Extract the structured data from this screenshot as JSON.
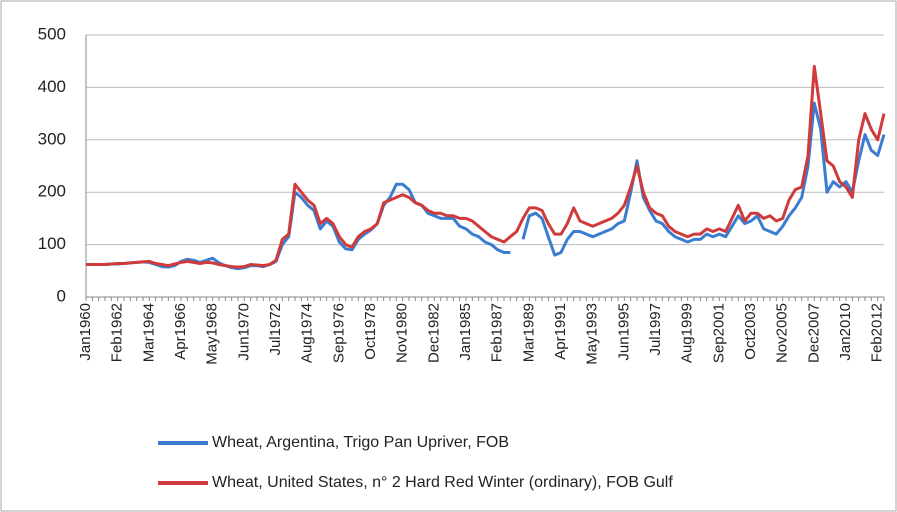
{
  "chart_data": {
    "type": "line",
    "categories": [
      "Jan1960",
      null,
      null,
      null,
      null,
      "Feb1962",
      null,
      null,
      null,
      null,
      "Mar1964",
      null,
      null,
      null,
      null,
      "Apr1966",
      null,
      null,
      null,
      null,
      "May1968",
      null,
      null,
      null,
      null,
      "Jun1970",
      null,
      null,
      null,
      null,
      "Jul1972",
      null,
      null,
      null,
      null,
      "Aug1974",
      null,
      null,
      null,
      null,
      "Sep1976",
      null,
      null,
      null,
      null,
      "Oct1978",
      null,
      null,
      null,
      null,
      "Nov1980",
      null,
      null,
      null,
      null,
      "Dec1982",
      null,
      null,
      null,
      null,
      "Jan1985",
      null,
      null,
      null,
      null,
      "Feb1987",
      null,
      null,
      null,
      null,
      "Mar1989",
      null,
      null,
      null,
      null,
      "Apr1991",
      null,
      null,
      null,
      null,
      "May1993",
      null,
      null,
      null,
      null,
      "Jun1995",
      null,
      null,
      null,
      null,
      "Jul1997",
      null,
      null,
      null,
      null,
      "Aug1999",
      null,
      null,
      null,
      null,
      "Sep2001",
      null,
      null,
      null,
      null,
      "Oct2003",
      null,
      null,
      null,
      null,
      "Nov2005",
      null,
      null,
      null,
      null,
      "Dec2007",
      null,
      null,
      null,
      null,
      "Jan2010",
      null,
      null,
      null,
      null,
      "Feb2012",
      null
    ],
    "series": [
      {
        "name": "Wheat, Argentina, Trigo Pan Upriver, FOB",
        "color": "#3a7dd0",
        "values": [
          62,
          62,
          62,
          62,
          63,
          63,
          64,
          65,
          66,
          67,
          66,
          62,
          58,
          57,
          60,
          68,
          72,
          70,
          66,
          70,
          74,
          65,
          60,
          56,
          54,
          56,
          60,
          60,
          58,
          62,
          68,
          100,
          115,
          200,
          190,
          175,
          165,
          130,
          145,
          135,
          105,
          92,
          90,
          110,
          120,
          128,
          140,
          175,
          190,
          215,
          215,
          205,
          180,
          175,
          160,
          155,
          150,
          150,
          150,
          135,
          130,
          120,
          115,
          105,
          100,
          90,
          85,
          85,
          null,
          110,
          155,
          160,
          150,
          115,
          80,
          85,
          110,
          125,
          125,
          120,
          115,
          120,
          125,
          130,
          140,
          145,
          200,
          260,
          190,
          165,
          145,
          140,
          125,
          115,
          110,
          105,
          110,
          110,
          120,
          115,
          120,
          115,
          135,
          155,
          140,
          145,
          155,
          130,
          125,
          120,
          135,
          155,
          170,
          190,
          250,
          370,
          320,
          200,
          220,
          210,
          220,
          200,
          260,
          310,
          280,
          270,
          310
        ]
      },
      {
        "name": "Wheat, United States, n° 2 Hard Red Winter (ordinary), FOB Gulf",
        "color": "#d03a3a",
        "values": [
          62,
          62,
          62,
          62,
          63,
          64,
          64,
          65,
          66,
          67,
          68,
          64,
          62,
          60,
          63,
          66,
          68,
          66,
          64,
          66,
          65,
          62,
          60,
          58,
          57,
          58,
          62,
          61,
          60,
          62,
          70,
          110,
          120,
          215,
          200,
          185,
          175,
          140,
          150,
          140,
          115,
          100,
          95,
          115,
          125,
          130,
          140,
          180,
          185,
          190,
          195,
          190,
          180,
          175,
          165,
          160,
          160,
          155,
          155,
          150,
          150,
          145,
          135,
          125,
          115,
          110,
          105,
          115,
          125,
          150,
          170,
          170,
          165,
          140,
          120,
          120,
          140,
          170,
          145,
          140,
          135,
          140,
          145,
          150,
          160,
          175,
          210,
          250,
          200,
          170,
          160,
          155,
          135,
          125,
          120,
          115,
          120,
          120,
          130,
          125,
          130,
          125,
          150,
          175,
          145,
          160,
          160,
          150,
          155,
          145,
          150,
          185,
          205,
          210,
          270,
          440,
          350,
          260,
          250,
          220,
          210,
          190,
          300,
          350,
          320,
          300,
          350
        ]
      }
    ],
    "ylim": [
      0,
      500
    ],
    "yticks": [
      0,
      100,
      200,
      300,
      400,
      500
    ],
    "grid": true,
    "legend": "bottom"
  }
}
